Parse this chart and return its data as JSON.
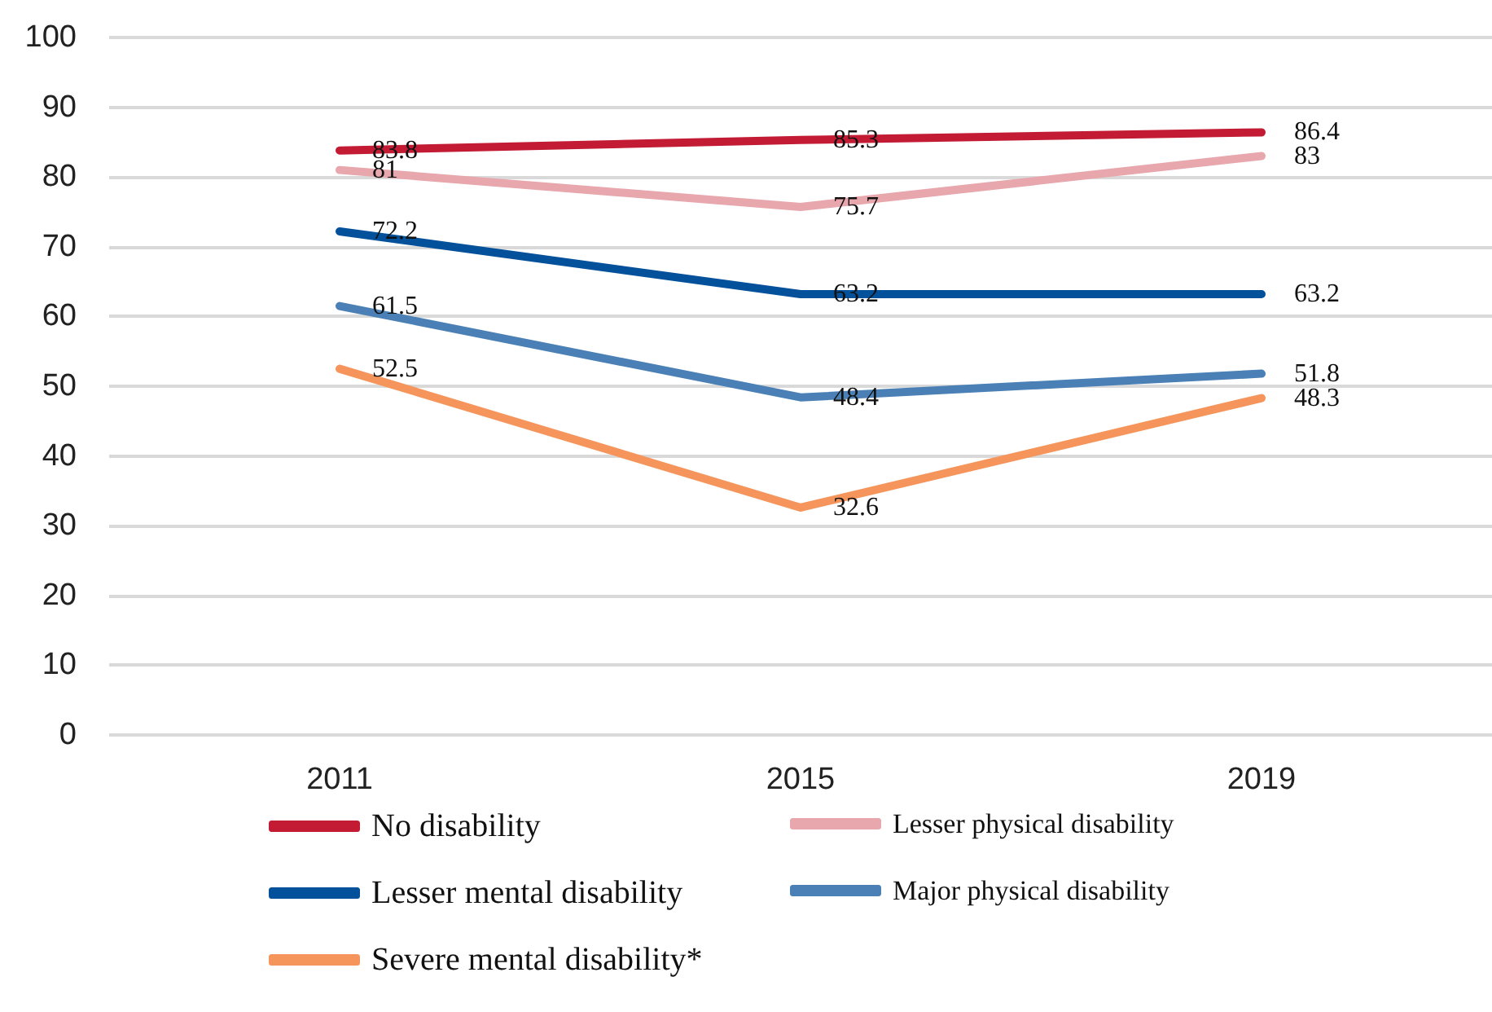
{
  "chart_data": {
    "type": "line",
    "categories": [
      "2011",
      "2015",
      "2019"
    ],
    "series": [
      {
        "name": "No disability",
        "color": "#c21b33",
        "values": [
          83.8,
          85.3,
          86.4
        ]
      },
      {
        "name": "Lesser physical disability",
        "color": "#e8a6ad",
        "values": [
          81,
          75.7,
          83
        ]
      },
      {
        "name": "Lesser mental disability",
        "color": "#03509b",
        "values": [
          72.2,
          63.2,
          63.2
        ]
      },
      {
        "name": "Major physical disability",
        "color": "#4a80b5",
        "values": [
          61.5,
          48.4,
          51.8
        ]
      },
      {
        "name": "Severe mental disability*",
        "color": "#f5945b",
        "values": [
          52.5,
          32.6,
          48.3
        ]
      }
    ],
    "ylim": [
      0,
      100
    ],
    "yticks": [
      0,
      10,
      20,
      30,
      40,
      50,
      60,
      70,
      80,
      90,
      100
    ],
    "grid": "y",
    "legend": "bottom",
    "marker": "none",
    "line_style": "solid",
    "data_labels": true
  }
}
